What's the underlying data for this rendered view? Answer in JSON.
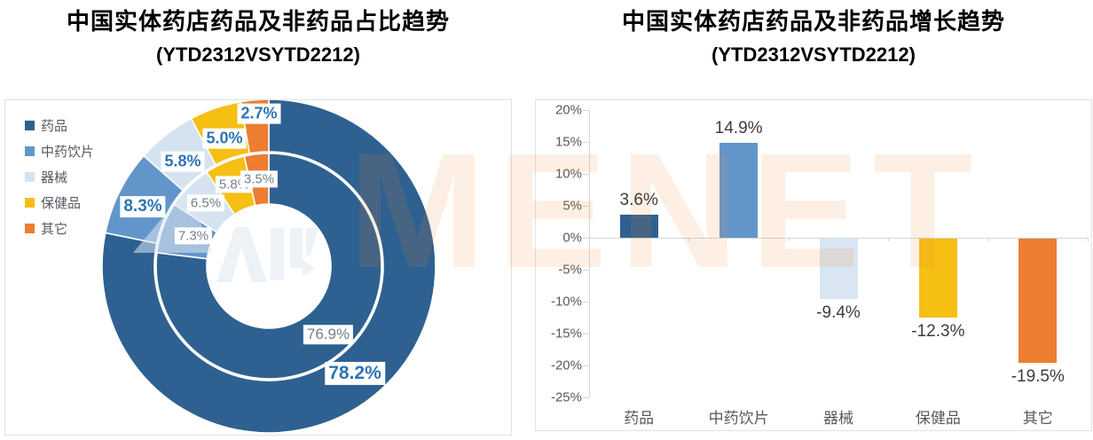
{
  "watermark": {
    "text": "MENET"
  },
  "chart_data": [
    {
      "type": "pie",
      "subtype": "doughnut-double-ring",
      "title": "中国实体药店药品及非药品占比趋势",
      "subtitle": "(YTD2312VSYTD2212)",
      "categories": [
        "药品",
        "中药饮片",
        "器械",
        "保健品",
        "其它"
      ],
      "colors": [
        "#2E6191",
        "#6296CB",
        "#D5E3F1",
        "#F5BF14",
        "#ED7D31"
      ],
      "legend_position": "left",
      "series": [
        {
          "name": "inner-ring",
          "values": [
            76.9,
            7.3,
            6.5,
            5.8,
            3.5
          ],
          "labels": [
            "76.9%",
            "7.3%",
            "6.5%",
            "5.8%",
            "3.5%"
          ]
        },
        {
          "name": "outer-ring",
          "values": [
            78.2,
            8.3,
            5.8,
            5.0,
            2.7
          ],
          "labels": [
            "78.2%",
            "8.3%",
            "5.8%",
            "5.0%",
            "2.7%"
          ]
        }
      ]
    },
    {
      "type": "bar",
      "title": "中国实体药店药品及非药品增长趋势",
      "subtitle": "(YTD2312VSYTD2212)",
      "categories": [
        "药品",
        "中药饮片",
        "器械",
        "保健品",
        "其它"
      ],
      "values": [
        3.6,
        14.9,
        -9.4,
        -12.3,
        -19.5
      ],
      "labels": [
        "3.6%",
        "14.9%",
        "-9.4%",
        "-12.3%",
        "-19.5%"
      ],
      "colors": [
        "#2E6191",
        "#6296CB",
        "#D9E5F1",
        "#F5BF14",
        "#ED7D31"
      ],
      "xlabel": "",
      "ylabel": "",
      "ylim": [
        -25,
        20
      ],
      "grid": "zero-line-only",
      "y_ticks": {
        "labels": [
          "20%",
          "15%",
          "10%",
          "5%",
          "0%",
          "-5%",
          "-10%",
          "-15%",
          "-20%",
          "-25%"
        ],
        "values": [
          20,
          15,
          10,
          5,
          0,
          -5,
          -10,
          -15,
          -20,
          -25
        ]
      }
    }
  ]
}
